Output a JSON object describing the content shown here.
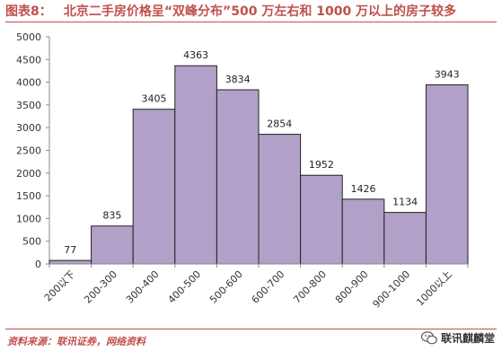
{
  "header": {
    "figure_label": "图表8：",
    "title": "北京二手房价格呈“双峰分布”500 万左右和 1000 万以上的房子较多"
  },
  "source": "资料来源：联讯证券，网络资料",
  "watermark": {
    "text": "联讯麒麟堂",
    "icon": "wechat-icon"
  },
  "colors": {
    "bar": "#b1a0c8",
    "bar_stroke": "#222222",
    "accent": "#c0504d"
  },
  "chart_data": {
    "type": "bar",
    "categories": [
      "200以下",
      "200-300",
      "300-400",
      "400-500",
      "500-600",
      "600-700",
      "700-800",
      "800-900",
      "900-1000",
      "1000以上"
    ],
    "values": [
      77,
      835,
      3405,
      4363,
      3834,
      2854,
      1952,
      1426,
      1134,
      3943
    ],
    "title": "",
    "xlabel": "",
    "ylabel": "",
    "ylim": [
      0,
      5000
    ],
    "yticks": [
      0,
      500,
      1000,
      1500,
      2000,
      2500,
      3000,
      3500,
      4000,
      4500,
      5000
    ],
    "grid": false,
    "legend": "none"
  }
}
